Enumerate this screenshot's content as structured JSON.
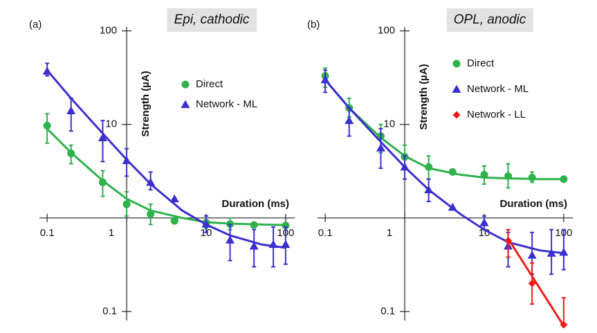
{
  "chart_data": [
    {
      "type": "line",
      "log_x": true,
      "log_y": true,
      "x_axis_at": 1,
      "y_axis_at": 1,
      "panel_label": "(a)",
      "title": "Epi, cathodic",
      "y_label": "Strength (µA)",
      "x_label": "Duration (ms)",
      "xlim": [
        0.08,
        130
      ],
      "ylim": [
        0.08,
        110
      ],
      "xticks": [
        0.1,
        1,
        10,
        100
      ],
      "yticks": [
        0.1,
        10,
        100
      ],
      "series": [
        {
          "name": "Direct",
          "color": "#2eb24a",
          "marker": "circle",
          "x": [
            0.1,
            0.2,
            0.5,
            1,
            2,
            4,
            10,
            20,
            40,
            100
          ],
          "values": [
            9.7,
            4.9,
            2.4,
            1.4,
            1.1,
            0.93,
            0.89,
            0.86,
            0.84,
            0.83
          ],
          "upper": [
            13,
            6,
            3.2,
            1.9,
            1.4,
            null,
            1.05,
            1.0,
            null,
            null
          ],
          "lower": [
            6.3,
            3.8,
            1.7,
            1.05,
            0.85,
            null,
            0.78,
            0.75,
            null,
            null
          ],
          "fit": {
            "x": [
              0.1,
              0.2,
              0.5,
              1,
              2,
              5,
              10,
              20,
              50,
              100
            ],
            "values": [
              9,
              5,
              2.5,
              1.6,
              1.2,
              1.0,
              0.9,
              0.87,
              0.85,
              0.84
            ]
          }
        },
        {
          "name": "Network - ML",
          "color": "#3a2fd0",
          "marker": "triangle",
          "x": [
            0.1,
            0.2,
            0.5,
            1,
            2,
            4,
            10,
            20,
            40,
            70,
            100
          ],
          "values": [
            37,
            14,
            7.2,
            4.1,
            2.4,
            1.6,
            0.86,
            0.58,
            0.5,
            0.52,
            0.52
          ],
          "upper": [
            45,
            19,
            11,
            5.5,
            3.1,
            null,
            1.05,
            0.85,
            0.75,
            0.8,
            0.8
          ],
          "lower": [
            33,
            8.5,
            4,
            2.8,
            2,
            null,
            0.7,
            0.35,
            0.3,
            0.3,
            0.32
          ],
          "fit": {
            "x": [
              0.1,
              0.2,
              0.5,
              1,
              2,
              5,
              10,
              20,
              50,
              100
            ],
            "values": [
              38,
              19,
              8,
              4.2,
              2.3,
              1.2,
              0.85,
              0.65,
              0.52,
              0.48
            ]
          }
        }
      ]
    },
    {
      "type": "line",
      "log_x": true,
      "log_y": true,
      "x_axis_at": 1,
      "y_axis_at": 1,
      "panel_label": "(b)",
      "title": "OPL, anodic",
      "y_label": "Strength (µA)",
      "x_label": "Duration (ms)",
      "xlim": [
        0.08,
        130
      ],
      "ylim": [
        0.08,
        110
      ],
      "xticks": [
        0.1,
        1,
        10,
        100
      ],
      "yticks": [
        0.1,
        10,
        100
      ],
      "series": [
        {
          "name": "Direct",
          "color": "#2eb24a",
          "marker": "circle",
          "x": [
            0.1,
            0.2,
            0.5,
            1,
            2,
            4,
            10,
            20,
            40,
            100
          ],
          "values": [
            33,
            15,
            7.5,
            4.5,
            3.5,
            3.1,
            2.9,
            2.8,
            2.7,
            2.6
          ],
          "upper": [
            40,
            19,
            10,
            6,
            4.6,
            null,
            3.6,
            3.8,
            3.1,
            null
          ],
          "lower": [
            25,
            12,
            5,
            3.5,
            2.6,
            null,
            2.3,
            2.1,
            2.4,
            null
          ],
          "fit": {
            "x": [
              0.1,
              0.2,
              0.5,
              1,
              2,
              5,
              10,
              20,
              50,
              100
            ],
            "values": [
              30,
              15,
              7.2,
              4.6,
              3.4,
              2.9,
              2.7,
              2.65,
              2.6,
              2.6
            ]
          }
        },
        {
          "name": "Network - ML",
          "color": "#3a2fd0",
          "marker": "triangle",
          "x": [
            0.1,
            0.2,
            0.5,
            1,
            2,
            4,
            10,
            20,
            40,
            70,
            100
          ],
          "values": [
            30,
            11,
            5.6,
            3.5,
            2,
            1.3,
            0.89,
            0.5,
            0.4,
            0.42,
            0.43
          ],
          "upper": [
            38,
            15,
            9,
            4.6,
            2.6,
            null,
            1.05,
            0.7,
            0.7,
            0.75,
            0.75
          ],
          "lower": [
            22,
            7.5,
            3.4,
            2.6,
            1.5,
            null,
            0.75,
            0.3,
            0.25,
            0.25,
            0.28
          ],
          "fit": {
            "x": [
              0.1,
              0.2,
              0.5,
              1,
              2,
              5,
              10,
              20,
              50,
              100
            ],
            "values": [
              30,
              15,
              6.5,
              3.5,
              2.0,
              1.1,
              0.75,
              0.55,
              0.45,
              0.42
            ]
          }
        },
        {
          "name": "Network - LL",
          "color": "#ee1c1c",
          "marker": "diamond",
          "x": [
            20,
            40,
            100
          ],
          "values": [
            0.57,
            0.2,
            0.072
          ],
          "upper": [
            0.75,
            0.33,
            0.14
          ],
          "lower": [
            0.38,
            0.12,
            null
          ],
          "fit": {
            "x": [
              20,
              100
            ],
            "values": [
              0.6,
              0.07
            ]
          }
        }
      ]
    }
  ]
}
